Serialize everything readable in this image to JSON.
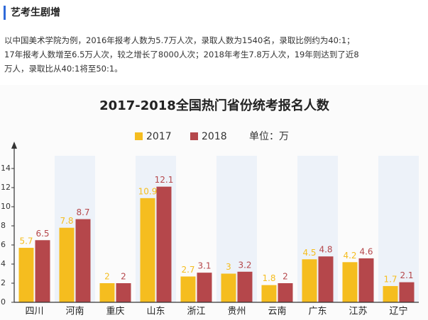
{
  "header": {
    "title": "艺考生剧增"
  },
  "paragraph": {
    "lines": [
      "以中国美术学院为例，2016年报考人数为5.7万人次，录取人数为1540名，录取比例约为40:1；",
      "17年报考人数增至6.5万人次，较之增长了8000人次；2018年考生7.8万人次，19年则达到了近8",
      "万人，录取比从40:1将至50:1。"
    ]
  },
  "chart_data": {
    "type": "bar",
    "title": "2017-2018全国热门省份统考报名人数",
    "unit": "单位：万",
    "categories": [
      "四川",
      "河南",
      "重庆",
      "山东",
      "浙江",
      "贵州",
      "云南",
      "广东",
      "江苏",
      "辽宁"
    ],
    "series": [
      {
        "name": "2017",
        "color": "#f5bd1f",
        "values": [
          5.7,
          7.8,
          2,
          10.9,
          2.7,
          3,
          1.8,
          4.5,
          4.2,
          1.7
        ]
      },
      {
        "name": "2018",
        "color": "#b5474b",
        "values": [
          6.5,
          8.7,
          2,
          12.1,
          3.1,
          3.2,
          2,
          4.8,
          4.6,
          2.1
        ]
      }
    ],
    "ylim": [
      0,
      14
    ],
    "yticks": [
      0,
      2,
      4,
      6,
      8,
      10,
      12,
      14
    ],
    "grid": false
  }
}
